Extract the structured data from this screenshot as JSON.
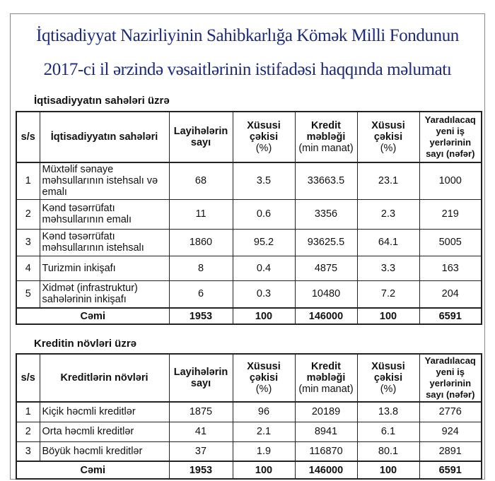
{
  "title": {
    "line1": "İqtisadiyyat Nazirliyinin Sahibkarlığa Kömək Milli Fondunun",
    "line2": "2017-ci il ərzində vəsaitlərinin istifadəsi haqqında məlumatı"
  },
  "headers": {
    "ss": "s/s",
    "projects": "Layihələrin sayı",
    "share1_a": "Xüsusi çəkisi",
    "share1_b": "(%)",
    "credit_a": "Kredit məbləği",
    "credit_b": "(min manat)",
    "share2_a": "Xüsusi çəkisi",
    "share2_b": "(%)",
    "jobs": "Yaradılacaq yeni iş yerlərinin sayı (nəfər)"
  },
  "table1": {
    "subtitle": "İqtisadiyyatın sahələri üzrə",
    "name_header": "İqtisadiyyatın sahələri",
    "rows": [
      {
        "n": "1",
        "name": "Müxtəlif sənaye məhsullarının istehsalı və emalı",
        "projects": "68",
        "share1": "3.5",
        "credit": "33663.5",
        "share2": "23.1",
        "jobs": "1000"
      },
      {
        "n": "2",
        "name": "Kənd təsərrüfatı məhsullarının emalı",
        "projects": "11",
        "share1": "0.6",
        "credit": "3356",
        "share2": "2.3",
        "jobs": "219"
      },
      {
        "n": "3",
        "name": "Kənd təsərrüfatı məhsullarının istehsalı",
        "projects": "1860",
        "share1": "95.2",
        "credit": "93625.5",
        "share2": "64.1",
        "jobs": "5005"
      },
      {
        "n": "4",
        "name": "Turizmin inkişafı",
        "projects": "8",
        "share1": "0.4",
        "credit": "4875",
        "share2": "3.3",
        "jobs": "163"
      },
      {
        "n": "5",
        "name": "Xidmət (infrastruktur) sahələrinin inkişafı",
        "projects": "6",
        "share1": "0.3",
        "credit": "10480",
        "share2": "7.2",
        "jobs": "204"
      }
    ],
    "total": {
      "label": "Cəmi",
      "projects": "1953",
      "share1": "100",
      "credit": "146000",
      "share2": "100",
      "jobs": "6591"
    }
  },
  "table2": {
    "subtitle": "Kreditin növləri üzrə",
    "name_header": "Kreditlərin növləri",
    "rows": [
      {
        "n": "1",
        "name": "Kiçik həcmli kreditlər",
        "projects": "1875",
        "share1": "96",
        "credit": "20189",
        "share2": "13.8",
        "jobs": "2776"
      },
      {
        "n": "2",
        "name": "Orta həcmli kreditlər",
        "projects": "41",
        "share1": "2.1",
        "credit": "8941",
        "share2": "6.1",
        "jobs": "924"
      },
      {
        "n": "3",
        "name": "Böyük həcmli kreditlər",
        "projects": "37",
        "share1": "1.9",
        "credit": "116870",
        "share2": "80.1",
        "jobs": "2891"
      }
    ],
    "total": {
      "label": "Cəmi",
      "projects": "1953",
      "share1": "100",
      "credit": "146000",
      "share2": "100",
      "jobs": "6591"
    }
  }
}
